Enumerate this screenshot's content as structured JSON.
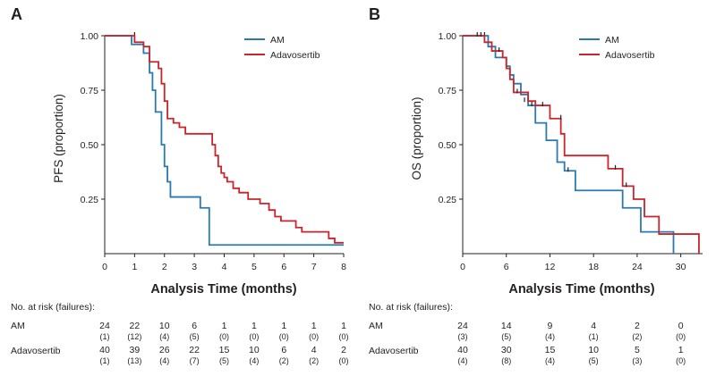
{
  "chart_data": [
    {
      "type": "line",
      "panel": "A",
      "ylabel": "PFS (proportion)",
      "xlabel": "Analysis Time (months)",
      "xlim": [
        0,
        8
      ],
      "ylim": [
        0,
        1
      ],
      "xticks": [
        0,
        1,
        2,
        3,
        4,
        5,
        6,
        7,
        8
      ],
      "yticks": [
        0.25,
        0.5,
        0.75,
        1.0
      ],
      "ytick_labels": [
        "0.25",
        "0.50",
        "0.75",
        "1.00"
      ],
      "legend_position": "top-right",
      "series": [
        {
          "name": "AM",
          "color": "#2a7ab0",
          "steps": [
            [
              0,
              1.0
            ],
            [
              0.9,
              0.96
            ],
            [
              1.3,
              0.92
            ],
            [
              1.5,
              0.83
            ],
            [
              1.6,
              0.75
            ],
            [
              1.7,
              0.65
            ],
            [
              1.8,
              0.65
            ],
            [
              1.9,
              0.5
            ],
            [
              2.0,
              0.4
            ],
            [
              2.1,
              0.33
            ],
            [
              2.2,
              0.26
            ],
            [
              3.2,
              0.21
            ],
            [
              3.5,
              0.04
            ],
            [
              8,
              0.04
            ]
          ],
          "censors": [
            [
              1.0,
              1.0
            ]
          ]
        },
        {
          "name": "Adavosertib",
          "color": "#c8252c",
          "steps": [
            [
              0,
              1.0
            ],
            [
              1.0,
              0.97
            ],
            [
              1.3,
              0.95
            ],
            [
              1.5,
              0.88
            ],
            [
              1.8,
              0.85
            ],
            [
              1.9,
              0.78
            ],
            [
              2.0,
              0.7
            ],
            [
              2.1,
              0.62
            ],
            [
              2.3,
              0.6
            ],
            [
              2.5,
              0.58
            ],
            [
              2.7,
              0.55
            ],
            [
              3.6,
              0.5
            ],
            [
              3.7,
              0.45
            ],
            [
              3.8,
              0.4
            ],
            [
              3.9,
              0.37
            ],
            [
              4.0,
              0.35
            ],
            [
              4.1,
              0.33
            ],
            [
              4.3,
              0.3
            ],
            [
              4.5,
              0.28
            ],
            [
              4.8,
              0.25
            ],
            [
              5.2,
              0.23
            ],
            [
              5.5,
              0.2
            ],
            [
              5.7,
              0.17
            ],
            [
              5.9,
              0.15
            ],
            [
              6.4,
              0.12
            ],
            [
              6.6,
              0.1
            ],
            [
              7.5,
              0.07
            ],
            [
              7.7,
              0.05
            ],
            [
              8,
              0.05
            ]
          ],
          "censors": []
        }
      ],
      "risk_table": {
        "title": "No. at risk (failures):",
        "rows": [
          {
            "label": "AM",
            "counts": [
              "24",
              "22",
              "10",
              "6",
              "1",
              "1",
              "1",
              "1",
              "1"
            ],
            "failures": [
              "(1)",
              "(12)",
              "(4)",
              "(5)",
              "(0)",
              "(0)",
              "(0)",
              "(0)",
              "(0)"
            ]
          },
          {
            "label": "Adavosertib",
            "counts": [
              "40",
              "39",
              "26",
              "22",
              "15",
              "10",
              "6",
              "4",
              "2"
            ],
            "failures": [
              "(1)",
              "(13)",
              "(4)",
              "(7)",
              "(5)",
              "(4)",
              "(2)",
              "(2)",
              "(0)"
            ]
          }
        ]
      }
    },
    {
      "type": "line",
      "panel": "B",
      "ylabel": "OS (proportion)",
      "xlabel": "Analysis Time (months)",
      "xlim": [
        0,
        33
      ],
      "ylim": [
        0,
        1
      ],
      "xticks": [
        0,
        6,
        12,
        18,
        24,
        30
      ],
      "yticks": [
        0.25,
        0.5,
        0.75,
        1.0
      ],
      "ytick_labels": [
        "0.25",
        "0.50",
        "0.75",
        "1.00"
      ],
      "legend_position": "top-right",
      "series": [
        {
          "name": "AM",
          "color": "#2a7ab0",
          "steps": [
            [
              0,
              1.0
            ],
            [
              2.5,
              1.0
            ],
            [
              3.5,
              0.95
            ],
            [
              4.5,
              0.9
            ],
            [
              6.0,
              0.86
            ],
            [
              6.5,
              0.82
            ],
            [
              7.0,
              0.78
            ],
            [
              8.0,
              0.73
            ],
            [
              9.0,
              0.68
            ],
            [
              10.0,
              0.6
            ],
            [
              11.5,
              0.52
            ],
            [
              13.0,
              0.42
            ],
            [
              14.0,
              0.38
            ],
            [
              15.5,
              0.29
            ],
            [
              21.0,
              0.29
            ],
            [
              22.0,
              0.21
            ],
            [
              24.5,
              0.1
            ],
            [
              29.0,
              0.0
            ]
          ],
          "censors": [
            [
              3.0,
              1.0
            ],
            [
              14.5,
              0.38
            ]
          ]
        },
        {
          "name": "Adavosertib",
          "color": "#c8252c",
          "steps": [
            [
              0,
              1.0
            ],
            [
              3.0,
              0.97
            ],
            [
              4.0,
              0.93
            ],
            [
              5.5,
              0.9
            ],
            [
              6.0,
              0.85
            ],
            [
              6.5,
              0.8
            ],
            [
              7.0,
              0.74
            ],
            [
              9.0,
              0.7
            ],
            [
              10.0,
              0.68
            ],
            [
              12.0,
              0.62
            ],
            [
              13.5,
              0.55
            ],
            [
              14.0,
              0.45
            ],
            [
              20.0,
              0.39
            ],
            [
              22.0,
              0.31
            ],
            [
              23.5,
              0.25
            ],
            [
              25.0,
              0.17
            ],
            [
              27.0,
              0.09
            ],
            [
              32.5,
              0.0
            ]
          ],
          "censors": [
            [
              2.0,
              1.0
            ],
            [
              2.5,
              1.0
            ],
            [
              5.0,
              0.93
            ],
            [
              7.5,
              0.74
            ],
            [
              8.5,
              0.7
            ],
            [
              9.5,
              0.68
            ],
            [
              11.0,
              0.68
            ],
            [
              13.5,
              0.62
            ],
            [
              21.0,
              0.39
            ],
            [
              22.5,
              0.31
            ]
          ]
        }
      ],
      "risk_table": {
        "title": "No. at risk (failures):",
        "rows": [
          {
            "label": "AM",
            "counts": [
              "24",
              "14",
              "9",
              "4",
              "2",
              "0"
            ],
            "failures": [
              "(3)",
              "(5)",
              "(4)",
              "(1)",
              "(2)",
              "(0)"
            ]
          },
          {
            "label": "Adavosertib",
            "counts": [
              "40",
              "30",
              "15",
              "10",
              "5",
              "1"
            ],
            "failures": [
              "(4)",
              "(8)",
              "(4)",
              "(5)",
              "(3)",
              "(0)"
            ]
          }
        ]
      }
    }
  ]
}
